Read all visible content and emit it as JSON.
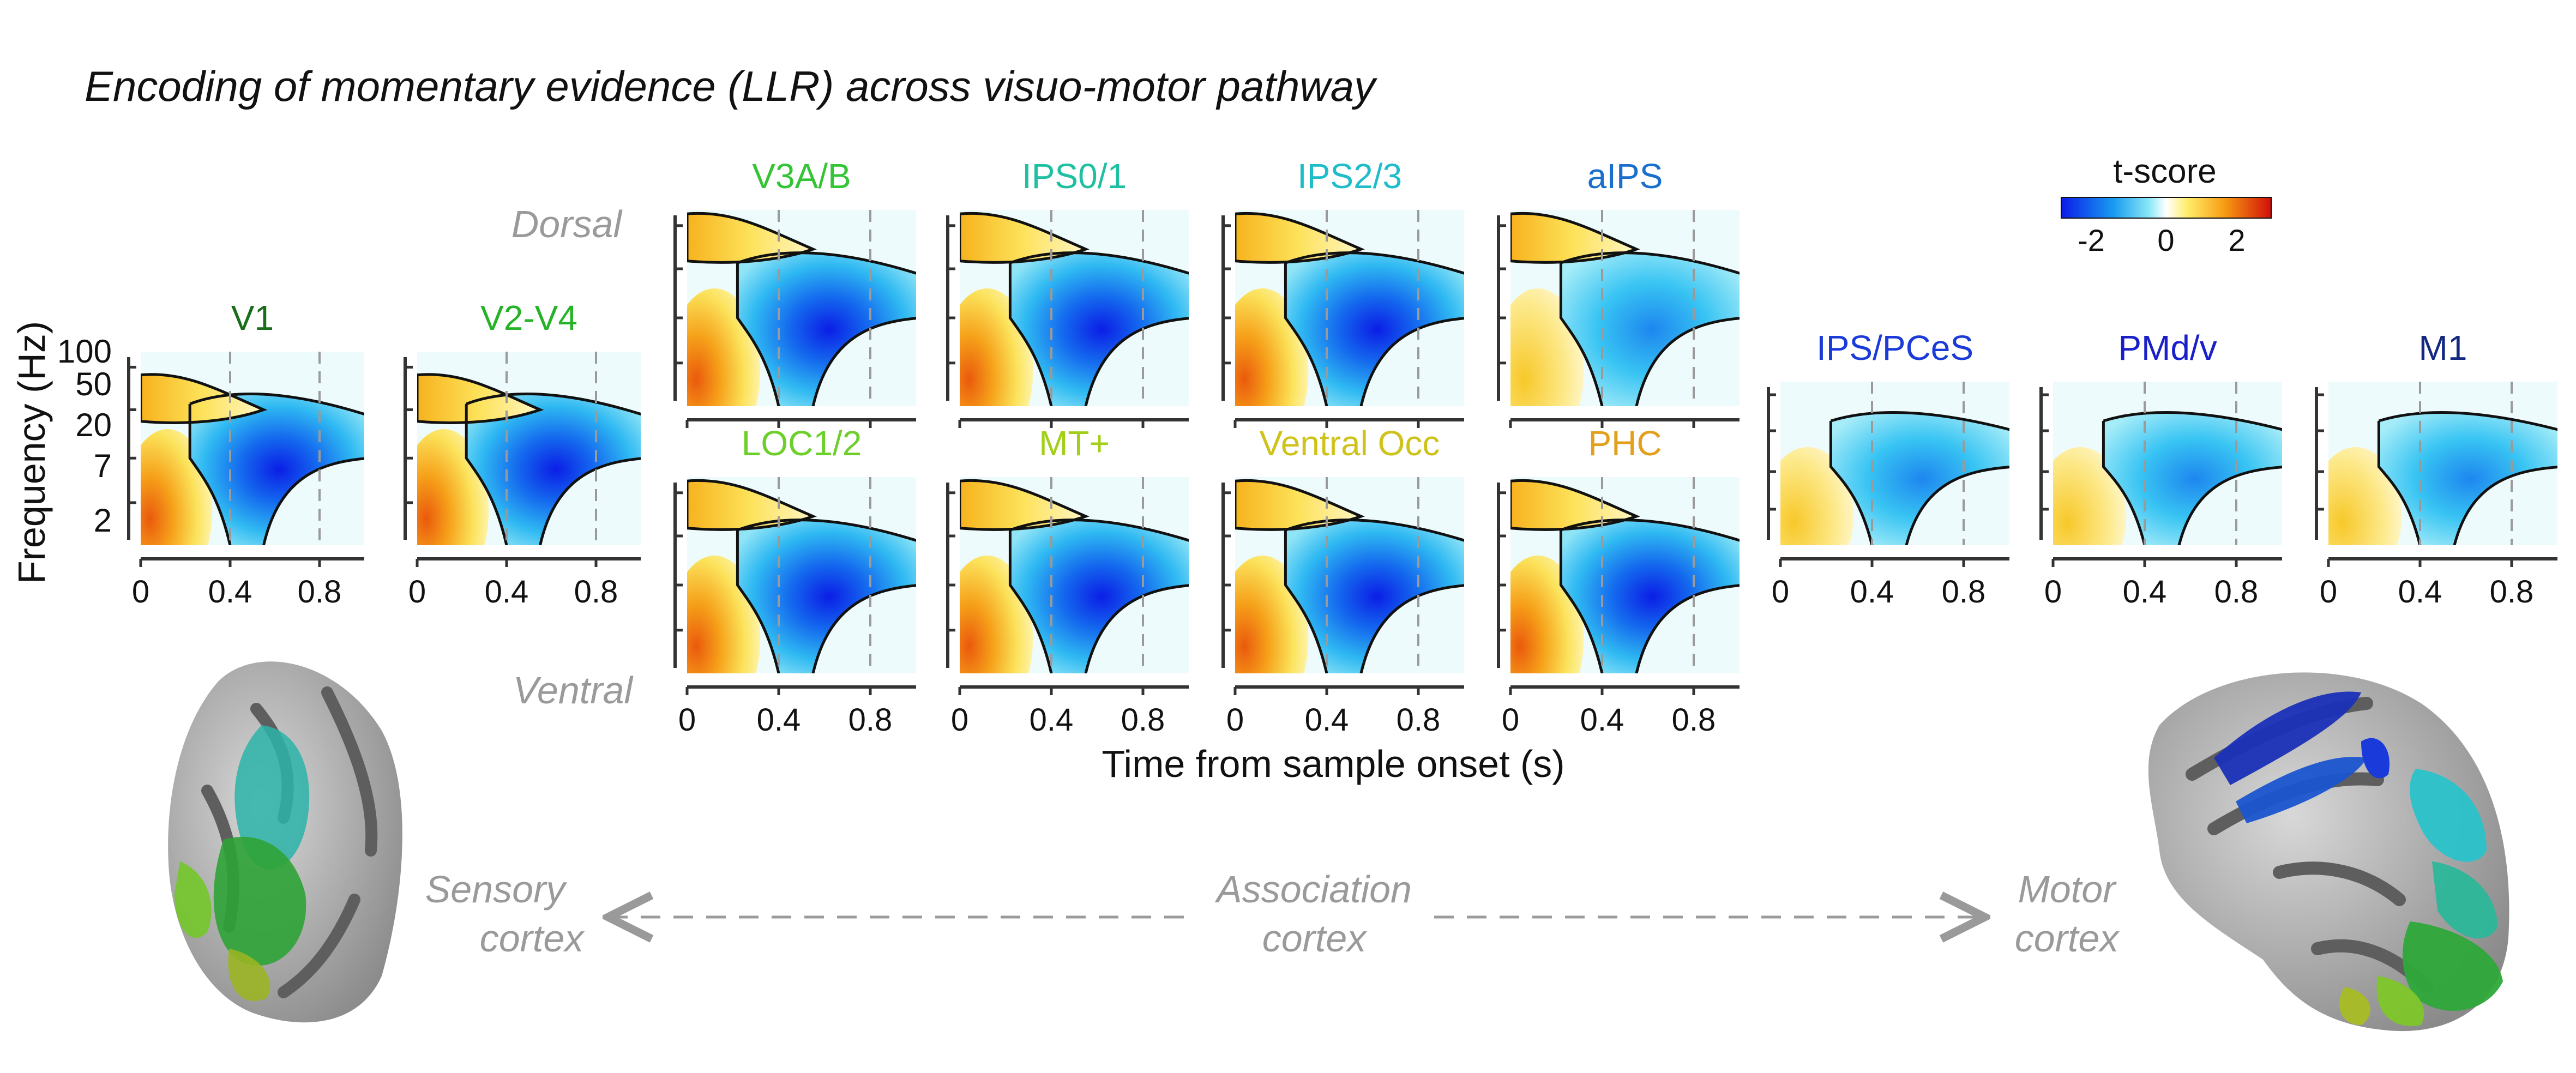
{
  "title": "Encoding of momentary evidence (LLR) across visuo-motor pathway",
  "ylabel": "Frequency (Hz)",
  "xlabel": "Time from sample onset (s)",
  "y_ticks": [
    "100",
    "50",
    "20",
    "7",
    "2"
  ],
  "x_ticks": [
    "0",
    "0.4",
    "0.8"
  ],
  "stream_labels": {
    "dorsal": "Dorsal",
    "ventral": "Ventral"
  },
  "colorbar": {
    "title": "t-score",
    "ticks": [
      "-2",
      "0",
      "2"
    ],
    "range": [
      -3,
      3
    ]
  },
  "colors": {
    "negative": "#0a1ce8",
    "zero": "#ffffff",
    "positive": "#d83a08",
    "annotation_gray": "#9a9a9a"
  },
  "panels": {
    "v1": {
      "label": "V1",
      "color": "#1a6d1a"
    },
    "v2v4": {
      "label": "V2-V4",
      "color": "#27b327"
    },
    "v3ab": {
      "label": "V3A/B",
      "color": "#35c435"
    },
    "ips01": {
      "label": "IPS0/1",
      "color": "#1fc0a2"
    },
    "ips23": {
      "label": "IPS2/3",
      "color": "#1fbcc9"
    },
    "aips": {
      "label": "aIPS",
      "color": "#1a6fcd"
    },
    "loc12": {
      "label": "LOC1/2",
      "color": "#6ccf2a"
    },
    "mt": {
      "label": "MT+",
      "color": "#a3cf1a"
    },
    "ventocc": {
      "label": "Ventral Occ",
      "color": "#cfc21a"
    },
    "phc": {
      "label": "PHC",
      "color": "#e3a01c"
    },
    "ipspces": {
      "label": "IPS/PCeS",
      "color": "#1a3ad9"
    },
    "pmdv": {
      "label": "PMd/v",
      "color": "#1a20c9"
    },
    "m1": {
      "label": "M1",
      "color": "#152880"
    }
  },
  "pathway": {
    "sensory": {
      "line1": "Sensory",
      "line2": "cortex"
    },
    "association": {
      "line1": "Association",
      "line2": "cortex"
    },
    "motor": {
      "line1": "Motor",
      "line2": "cortex"
    }
  }
}
